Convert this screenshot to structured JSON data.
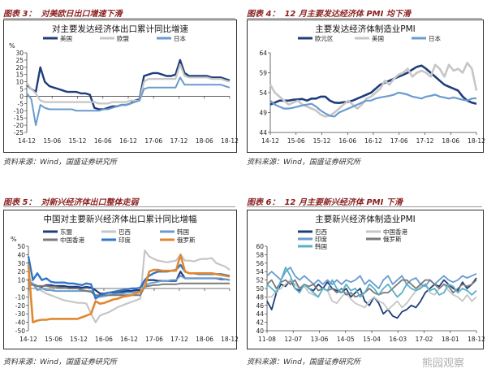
{
  "figures": [
    {
      "caption_num": "图表 3：",
      "caption_text": "对美欧日出口增速下滑",
      "source": "资料来源：Wind，国盛证券研究所",
      "chart": {
        "type": "line",
        "title": "对主要发达经济体出口累计同比增速",
        "ylabel": "%",
        "ylim": [
          -25,
          30
        ],
        "yticks": [
          -25,
          -20,
          -15,
          -10,
          -5,
          0,
          5,
          10,
          15,
          20,
          25,
          30
        ],
        "xticks": [
          "14-12",
          "15-06",
          "15-12",
          "16-06",
          "16-12",
          "17-06",
          "17-12",
          "18-06",
          "18-12"
        ],
        "legend_cols": 3,
        "series": [
          {
            "name": "美国",
            "color": "#1f3d7a",
            "width": 2.4,
            "values": [
              8,
              5,
              3,
              20,
              10,
              7,
              6,
              5,
              4,
              3,
              3,
              3,
              2,
              2,
              1,
              -8,
              -9,
              -9,
              -8,
              -7,
              -7,
              -6,
              -6,
              -5,
              -3,
              -2,
              14,
              15,
              16,
              16,
              15,
              14,
              14,
              15,
              25,
              16,
              14,
              14,
              14,
              14,
              14,
              13,
              13,
              13,
              12,
              11
            ]
          },
          {
            "name": "欧盟",
            "color": "#c6c6c6",
            "width": 2.2,
            "values": [
              9,
              5,
              2,
              -3,
              -4,
              -4,
              -4,
              -4,
              -4,
              -4,
              -4,
              -4,
              -4,
              -4,
              -4,
              -4,
              -5,
              -5,
              -5,
              -4,
              -4,
              -4,
              -4,
              -3,
              -3,
              -3,
              10,
              12,
              12,
              12,
              12,
              12,
              12,
              12,
              22,
              14,
              13,
              13,
              13,
              13,
              13,
              12,
              12,
              12,
              11,
              10
            ]
          },
          {
            "name": "日本",
            "color": "#6a9bd0",
            "width": 2.0,
            "values": [
              2,
              -2,
              -20,
              -6,
              -8,
              -9,
              -9,
              -9,
              -9,
              -9,
              -9,
              -10,
              -10,
              -10,
              -10,
              -10,
              -10,
              -9,
              -9,
              -8,
              -7,
              -6,
              -6,
              -5,
              -4,
              -3,
              5,
              6,
              6,
              6,
              6,
              6,
              6,
              6,
              13,
              8,
              8,
              8,
              8,
              8,
              8,
              8,
              8,
              8,
              7,
              6
            ]
          }
        ]
      }
    },
    {
      "caption_num": "图表 4：",
      "caption_text": "12 月主要发达经济体 PMI 均下滑",
      "source": "资料来源：Wind，国盛证券研究所",
      "chart": {
        "type": "line",
        "title": "主要发达经济体制造业PMI",
        "ylabel": "",
        "ylim": [
          44,
          64
        ],
        "yticks": [
          44,
          49,
          54,
          59,
          64
        ],
        "xticks": [
          "14-12",
          "15-06",
          "15-12",
          "16-06",
          "16-12",
          "17-06",
          "17-12",
          "18-06",
          "18-12"
        ],
        "legend_cols": 3,
        "series": [
          {
            "name": "欧元区",
            "color": "#1f3d7a",
            "width": 2.6,
            "values": [
              51,
              51.5,
              52,
              52,
              52,
              52.2,
              52.3,
              52.4,
              52,
              52.5,
              52.5,
              53,
              53,
              52,
              51.5,
              51.4,
              51.6,
              51.7,
              52,
              52.5,
              53,
              53.5,
              54,
              55,
              56,
              56.5,
              57,
              57.5,
              58,
              58.5,
              59,
              59.8,
              60.5,
              60.8,
              60,
              59,
              58,
              57,
              56,
              55.5,
              55,
              54.5,
              53,
              52,
              51.5,
              51.2
            ]
          },
          {
            "name": "美国",
            "color": "#c6c6c6",
            "width": 2.6,
            "values": [
              56,
              54,
              53,
              52,
              51,
              51.5,
              52,
              51,
              50.5,
              50,
              49.5,
              48.5,
              48,
              48.2,
              49,
              50,
              51,
              52,
              51,
              50,
              51,
              52.5,
              53,
              54,
              55,
              57,
              56,
              57.5,
              58.5,
              59,
              60,
              58,
              59,
              59.5,
              59,
              58,
              61,
              60,
              58,
              61,
              59.5,
              60,
              59,
              61.5,
              60,
              54.5
            ]
          },
          {
            "name": "日本",
            "color": "#6a9bd0",
            "width": 2.2,
            "values": [
              52,
              51,
              50.5,
              50,
              50,
              50.2,
              50.5,
              50.8,
              51,
              51.2,
              50.5,
              49.5,
              48.8,
              48.2,
              48,
              49,
              49.5,
              50,
              50.5,
              51,
              51.5,
              52,
              52,
              52.5,
              52.8,
              53,
              53.2,
              53.5,
              54,
              53.8,
              53.5,
              53,
              52.8,
              52.5,
              53,
              53.2,
              53.5,
              53,
              52.8,
              52.5,
              52.8,
              52.5,
              52.2,
              52,
              52.5,
              52.6
            ]
          }
        ]
      }
    },
    {
      "caption_num": "图表 5：",
      "caption_text": "对新兴经济体出口整体走弱",
      "source": "资料来源：Wind，国盛证券研究所",
      "chart": {
        "type": "line",
        "title": "中国对主要新兴经济体出口累计同比增幅",
        "ylabel": "%",
        "ylim": [
          -50,
          50
        ],
        "yticks": [
          -50,
          -40,
          -30,
          -20,
          -10,
          0,
          10,
          20,
          30,
          40,
          50
        ],
        "xticks": [
          "14-12",
          "15-06",
          "15-12",
          "16-06",
          "16-12",
          "17-06",
          "17-12",
          "18-06",
          "18-12"
        ],
        "legend_cols": 3,
        "series": [
          {
            "name": "东盟",
            "color": "#1f3d7a",
            "width": 2.2,
            "values": [
              10,
              5,
              3,
              2,
              4,
              4,
              3,
              3,
              3,
              2,
              2,
              2,
              1,
              2,
              1,
              -2,
              -6,
              -6,
              -5,
              -5,
              -4,
              -4,
              -3,
              -3,
              -2,
              -2,
              10,
              10,
              10,
              9,
              9,
              9,
              9,
              9,
              20,
              12,
              12,
              12,
              12,
              12,
              12,
              12,
              12,
              11,
              11,
              10
            ]
          },
          {
            "name": "巴西",
            "color": "#c6c6c6",
            "width": 2.2,
            "values": [
              14,
              5,
              0,
              -3,
              -6,
              -8,
              -10,
              -12,
              -14,
              -15,
              -16,
              -17,
              -17,
              -18,
              -30,
              -40,
              -32,
              -30,
              -28,
              -25,
              -22,
              -20,
              -18,
              -16,
              -14,
              -12,
              45,
              38,
              35,
              33,
              32,
              31,
              32,
              33,
              40,
              33,
              33,
              32,
              34,
              35,
              35,
              36,
              30,
              28,
              26,
              22
            ]
          },
          {
            "name": "韩国",
            "color": "#6a9bd0",
            "width": 2.0,
            "values": [
              8,
              6,
              -2,
              0,
              -2,
              -2,
              -3,
              -3,
              -3,
              -3,
              -3,
              -3,
              -3,
              -3,
              -3,
              -10,
              -10,
              -9,
              -8,
              -7,
              -6,
              -6,
              -5,
              -5,
              -4,
              -4,
              3,
              6,
              7,
              8,
              9,
              9,
              10,
              10,
              15,
              12,
              12,
              12,
              12,
              12,
              12,
              12,
              12,
              12,
              11,
              10
            ]
          },
          {
            "name": "中国香港",
            "color": "#7a7a7a",
            "width": 2.0,
            "values": [
              5,
              4,
              3,
              3,
              3,
              2,
              2,
              1,
              1,
              0,
              0,
              0,
              -2,
              -3,
              -4,
              -8,
              -8,
              -8,
              -8,
              -8,
              -8,
              -8,
              -8,
              -8,
              -8,
              -8,
              2,
              3,
              4,
              4,
              5,
              5,
              5,
              5,
              6,
              6,
              6,
              6,
              6,
              6,
              6,
              6,
              6,
              6,
              6,
              6
            ]
          },
          {
            "name": "印度",
            "color": "#2f76c8",
            "width": 2.4,
            "values": [
              38,
              10,
              18,
              10,
              12,
              8,
              7,
              7,
              7,
              6,
              6,
              5,
              4,
              6,
              5,
              -12,
              -8,
              -6,
              -5,
              -4,
              -3,
              -2,
              -1,
              0,
              0,
              1,
              10,
              15,
              18,
              20,
              20,
              20,
              21,
              22,
              28,
              20,
              18,
              18,
              17,
              17,
              17,
              17,
              17,
              17,
              16,
              15
            ]
          },
          {
            "name": "俄罗斯",
            "color": "#e0882f",
            "width": 2.6,
            "values": [
              28,
              -40,
              -38,
              -37,
              -37,
              -36,
              -36,
              -36,
              -36,
              -36,
              -36,
              -36,
              -34,
              -32,
              -30,
              -15,
              -18,
              -17,
              -15,
              -13,
              -12,
              -10,
              -9,
              -8,
              -6,
              -4,
              2,
              20,
              22,
              22,
              21,
              21,
              21,
              21,
              40,
              20,
              18,
              18,
              18,
              18,
              18,
              18,
              17,
              16,
              15,
              14
            ]
          }
        ]
      }
    },
    {
      "caption_num": "图表 6：",
      "caption_text": "12 月主要新兴经济体 PMI 下滑",
      "source": "资料来源：Wind，国盛证券研究所",
      "watermark": "熊园观察",
      "chart": {
        "type": "line",
        "title": "主要新兴经济体制造业PMI",
        "ylabel": "",
        "ylim": [
          40,
          60
        ],
        "yticks": [
          40,
          42,
          44,
          46,
          48,
          50,
          52,
          54,
          56,
          58,
          60
        ],
        "xticks": [
          "11-08",
          "12-07",
          "13-06",
          "14-05",
          "15-04",
          "16-03",
          "17-02",
          "18-01",
          "18-12"
        ],
        "legend_cols": 2,
        "series": [
          {
            "name": "巴西",
            "color": "#1f3d7a",
            "width": 1.8,
            "values": [
              47,
              45,
              49,
              51,
              50.5,
              52,
              50,
              49.5,
              51,
              50,
              49.5,
              51,
              50,
              51.5,
              50,
              49.5,
              49,
              50,
              48,
              49,
              50,
              47,
              46,
              48,
              46.5,
              44,
              45,
              43.5,
              43,
              44.5,
              45,
              46,
              45.5,
              47,
              49,
              50,
              51,
              50.5,
              52,
              51,
              50,
              49.5,
              51.5,
              50,
              51,
              52.5
            ]
          },
          {
            "name": "中国香港",
            "color": "#c6c6c6",
            "width": 1.8,
            "values": [
              48,
              48,
              49.5,
              50,
              51,
              52,
              51,
              50,
              50.5,
              49,
              48.5,
              48,
              50,
              49.5,
              47,
              46.5,
              48,
              49,
              47.5,
              46.5,
              46,
              45.5,
              47,
              48,
              47,
              46.5,
              45,
              46,
              47,
              45.5,
              46.5,
              48,
              49.5,
              50.5,
              51,
              49,
              48.5,
              50,
              51,
              49.5,
              48.5,
              48,
              47,
              48.5,
              47,
              48
            ]
          },
          {
            "name": "印度",
            "color": "#6a9bd0",
            "width": 1.8,
            "values": [
              53,
              54,
              53,
              52,
              54,
              55,
              53,
              52,
              53,
              52,
              51,
              52,
              51,
              52,
              51,
              52,
              51,
              52,
              51.5,
              52,
              53,
              51,
              52,
              51,
              50,
              52,
              53,
              51,
              52,
              53,
              51,
              52,
              52.5,
              51,
              50.5,
              52,
              51,
              52,
              53,
              52,
              51.5,
              52,
              53,
              52.5,
              53,
              53.5
            ]
          },
          {
            "name": "俄罗斯",
            "color": "#7a7a7a",
            "width": 1.8,
            "values": [
              51,
              52,
              50,
              51.5,
              52,
              51,
              52,
              50,
              51,
              50.5,
              51,
              49.5,
              50,
              49.5,
              50,
              49,
              50,
              48.5,
              49,
              48,
              48.5,
              49,
              50,
              49,
              48.5,
              49,
              49,
              50,
              51,
              52,
              52,
              51,
              50,
              51,
              52,
              52,
              51,
              50,
              51,
              50.5,
              49,
              50,
              51,
              50.5,
              51,
              52
            ]
          },
          {
            "name": "韩国",
            "color": "#5ab0c8",
            "width": 1.8,
            "values": [
              51,
              50,
              49,
              52,
              55,
              53,
              50,
              49,
              51,
              50,
              49,
              48,
              50,
              49.5,
              52,
              50,
              49,
              51,
              49.5,
              50,
              48,
              49,
              51,
              50,
              48.5,
              50,
              51,
              49.5,
              48,
              49,
              51,
              50,
              49.5,
              50,
              51,
              49.5,
              50,
              48.5,
              49,
              51,
              50.5,
              49,
              50,
              49.5,
              48.5,
              49.5
            ]
          }
        ]
      }
    }
  ]
}
